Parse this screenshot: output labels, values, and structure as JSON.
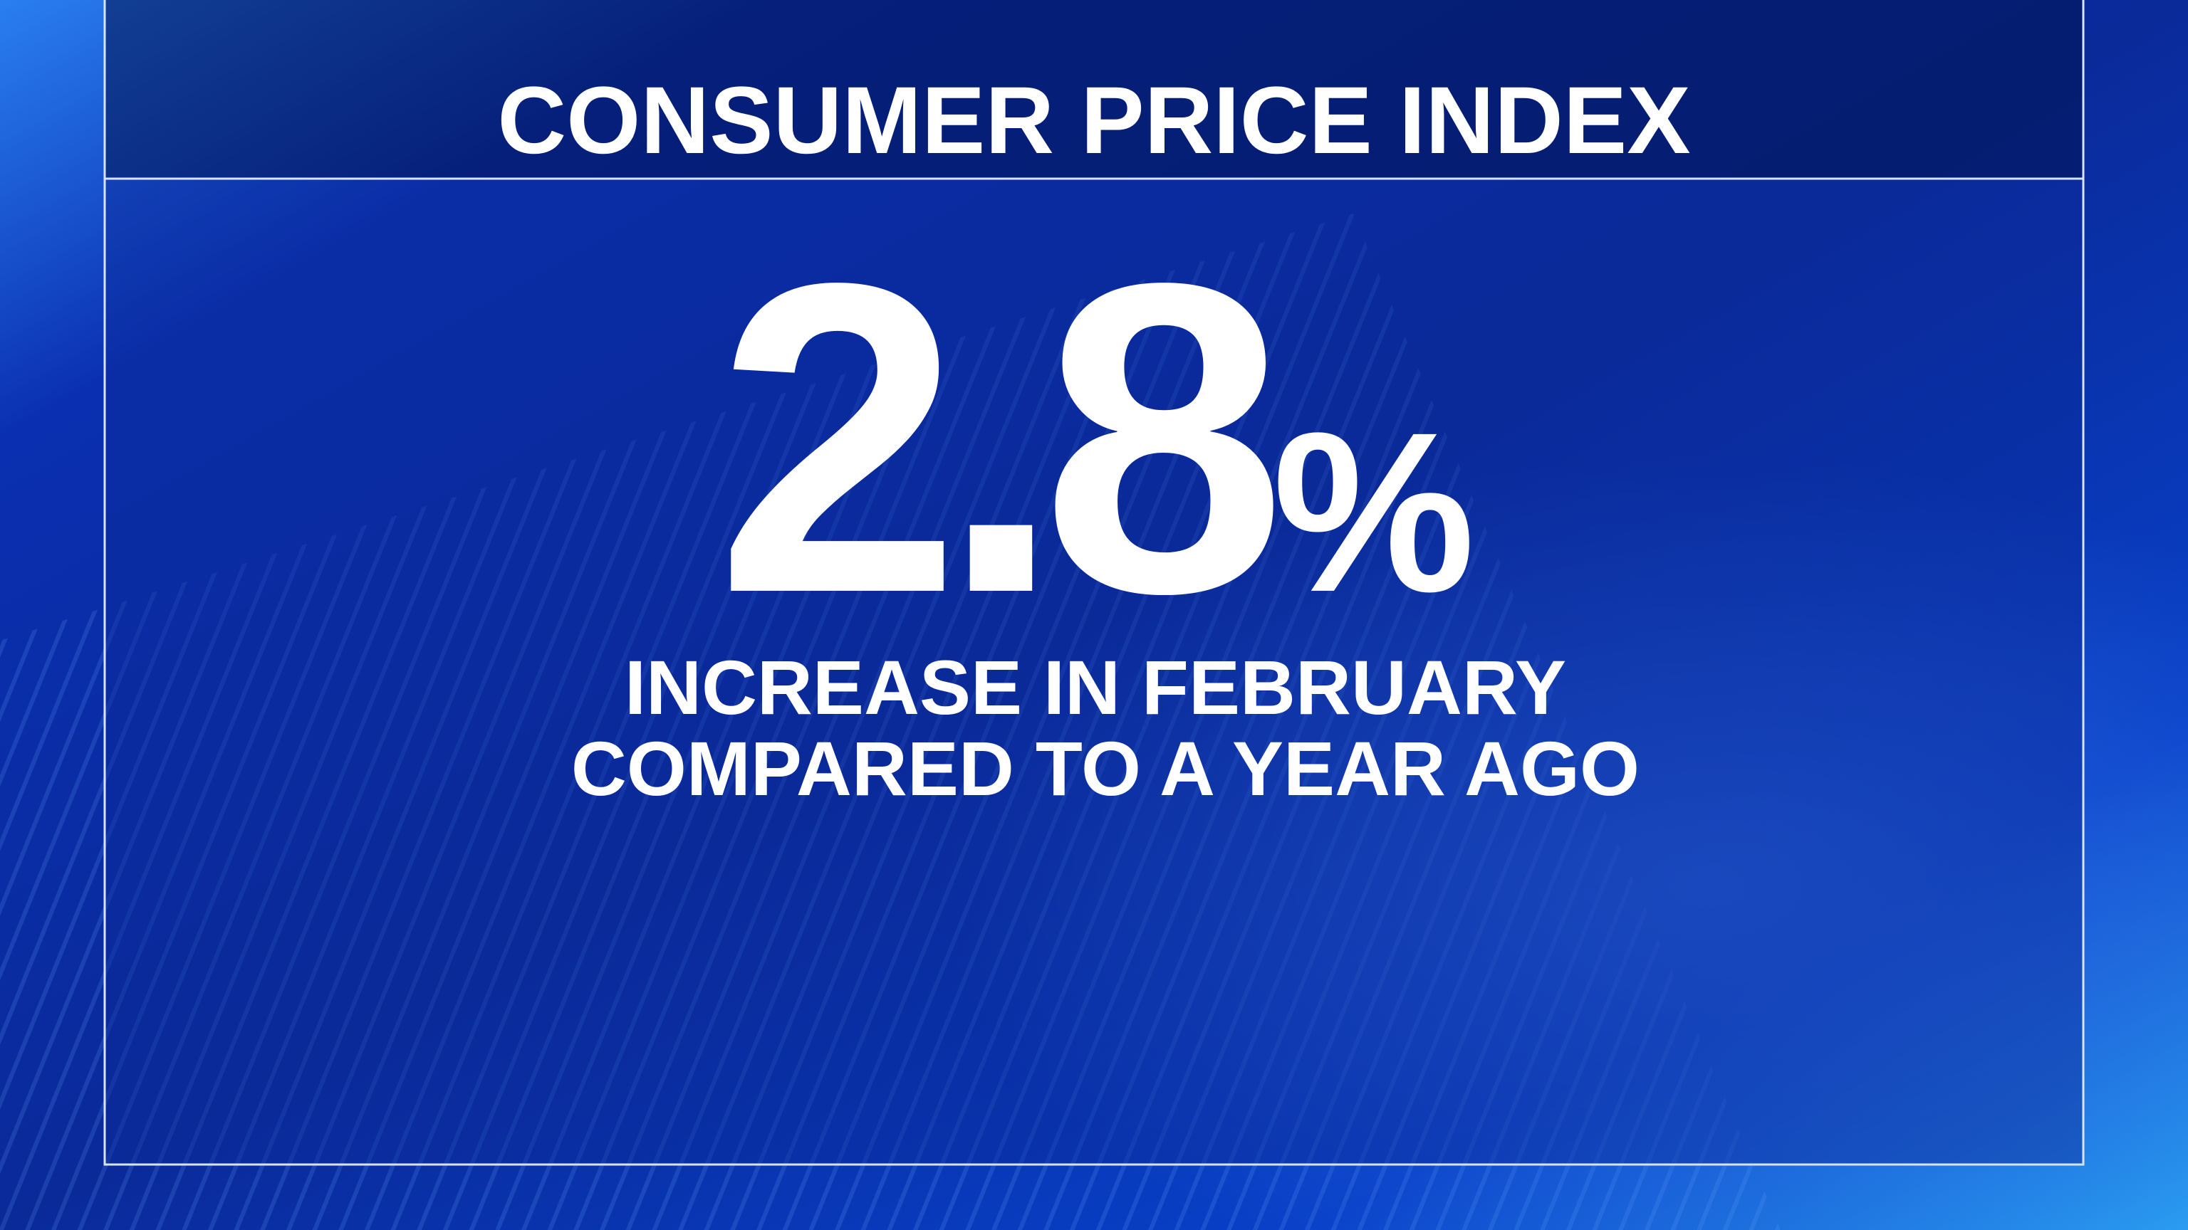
{
  "title": "CONSUMER PRICE INDEX",
  "figure": {
    "number": "2.8",
    "unit": "%"
  },
  "caption": [
    "INCREASE IN FEBRUARY",
    "COMPARED TO A YEAR AGO"
  ]
}
